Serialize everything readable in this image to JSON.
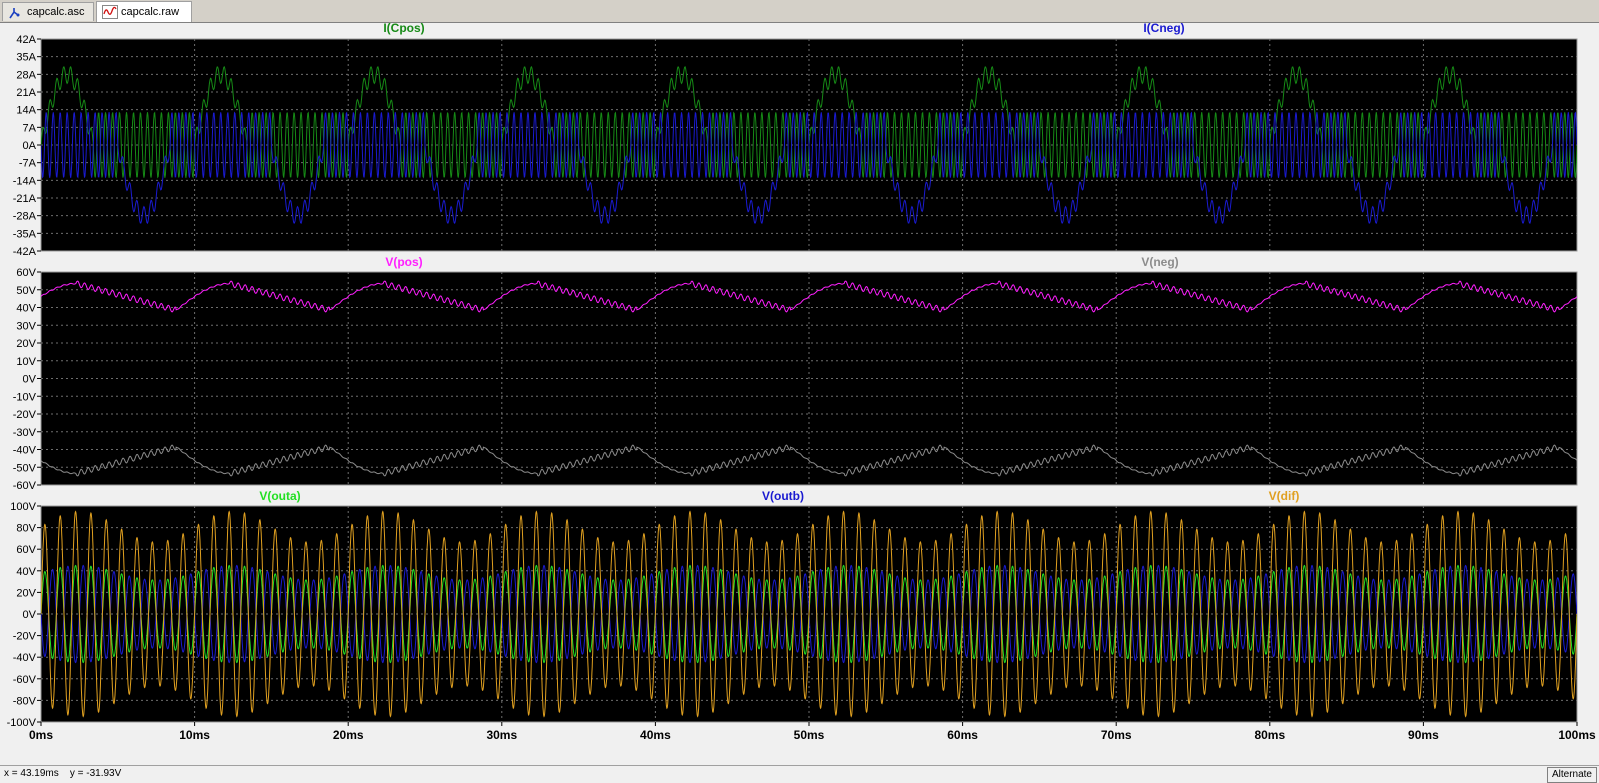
{
  "tabs": [
    {
      "label": "capcalc.asc",
      "icon": "schematic-icon",
      "active": false
    },
    {
      "label": "capcalc.raw",
      "icon": "waveform-icon",
      "active": true
    }
  ],
  "status": {
    "cursor_text": "x = 43.19ms    y = -31.93V",
    "mode_label": "Alternate"
  },
  "colors": {
    "background": "#000000",
    "grid": "#6e6e6e",
    "axis_text": "#000000",
    "green": "#168a16",
    "blue": "#1a1ad0",
    "magenta": "#ff1fff",
    "gray": "#8c8c8c",
    "bright_green": "#22e022",
    "orange": "#e0a020"
  },
  "x_axis": {
    "unit": "ms",
    "range": [
      0,
      100
    ],
    "ticks": [
      "0ms",
      "10ms",
      "20ms",
      "30ms",
      "40ms",
      "50ms",
      "60ms",
      "70ms",
      "80ms",
      "90ms",
      "100ms"
    ]
  },
  "chart_data": [
    {
      "type": "line",
      "ylim": [
        -42,
        42
      ],
      "y_ticks": [
        "42A",
        "35A",
        "28A",
        "21A",
        "14A",
        "7A",
        "0A",
        "-7A",
        "-14A",
        "-21A",
        "-28A",
        "-35A",
        "-42A"
      ],
      "series": [
        {
          "name": "I(Cpos)",
          "color": "#168a16",
          "dc": 0,
          "amp": 24,
          "ripple": 6,
          "phase": 0.0,
          "period_ms": 10,
          "shape": "cap_current_pos"
        },
        {
          "name": "I(Cneg)",
          "color": "#1a1ad0",
          "dc": 0,
          "amp": 24,
          "ripple": 6,
          "phase": 0.5,
          "period_ms": 10,
          "shape": "cap_current_neg"
        }
      ]
    },
    {
      "type": "line",
      "ylim": [
        -60,
        60
      ],
      "y_ticks": [
        "60V",
        "50V",
        "40V",
        "30V",
        "20V",
        "10V",
        "0V",
        "-10V",
        "-20V",
        "-30V",
        "-40V",
        "-50V",
        "-60V"
      ],
      "series": [
        {
          "name": "V(pos)",
          "color": "#ff1fff",
          "dc": 46,
          "amp": 7.5,
          "ripple": 1.6,
          "period_ms": 10,
          "shape": "rail_pos"
        },
        {
          "name": "V(neg)",
          "color": "#8c8c8c",
          "dc": -46,
          "amp": 7.5,
          "ripple": 1.6,
          "period_ms": 10,
          "shape": "rail_neg"
        }
      ]
    },
    {
      "type": "line",
      "ylim": [
        -100,
        100
      ],
      "y_ticks": [
        "100V",
        "80V",
        "60V",
        "40V",
        "20V",
        "0V",
        "-20V",
        "-40V",
        "-60V",
        "-80V",
        "-100V"
      ],
      "series": [
        {
          "name": "V(outa)",
          "color": "#22e022",
          "amp": 45,
          "freq_khz": 1.0
        },
        {
          "name": "V(outb)",
          "color": "#1a1ad0",
          "amp": 45,
          "freq_khz": 1.0
        },
        {
          "name": "V(dif)",
          "color": "#e0a020",
          "amp": 95,
          "freq_khz": 1.0
        }
      ]
    }
  ]
}
